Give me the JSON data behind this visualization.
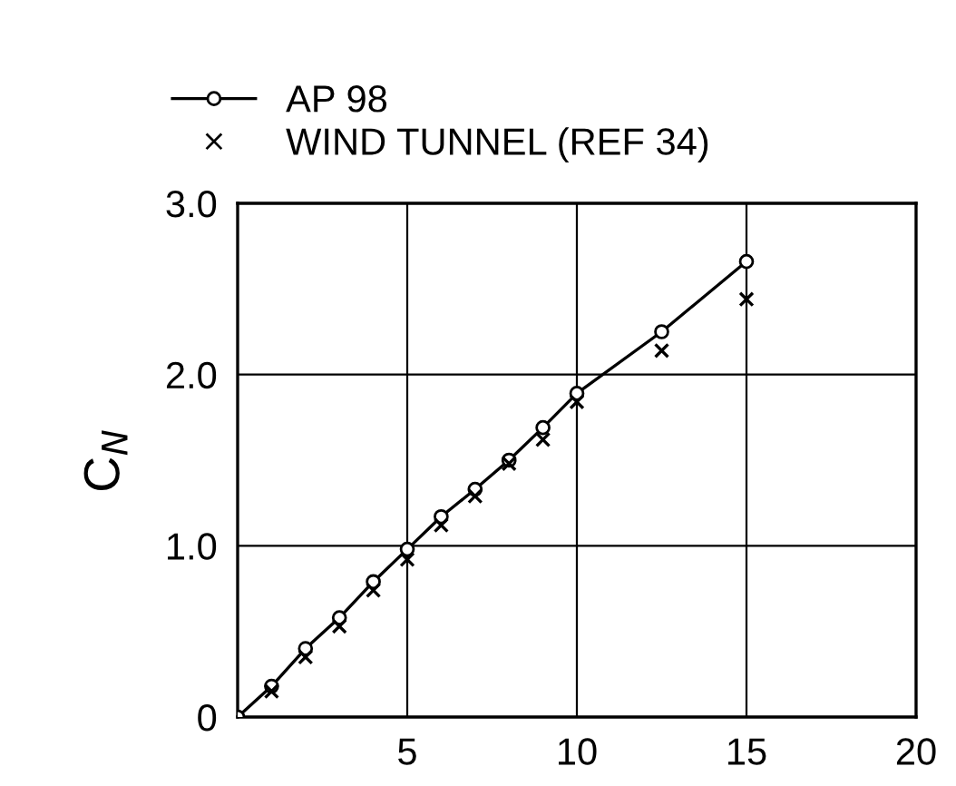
{
  "chart_data": {
    "type": "line",
    "ylabel": "C$_{N}$",
    "series": [
      {
        "name": "AP 98",
        "color": "#000000",
        "marker": "circle",
        "line_style": "solid",
        "x": [
          0,
          1,
          2,
          3,
          4,
          5,
          6,
          7,
          8,
          9,
          10,
          12.5,
          15
        ],
        "values": [
          0,
          0.18,
          0.4,
          0.58,
          0.79,
          0.98,
          1.17,
          1.33,
          1.5,
          1.69,
          1.89,
          2.25,
          2.66
        ]
      },
      {
        "name": "WIND TUNNEL (REF 34)",
        "type": "scatter",
        "color": "#000000",
        "marker": "cross",
        "x": [
          1,
          2,
          3,
          4,
          5,
          6,
          7,
          8,
          9,
          10,
          12.5,
          15
        ],
        "values": [
          0.15,
          0.35,
          0.53,
          0.74,
          0.92,
          1.12,
          1.29,
          1.48,
          1.62,
          1.84,
          2.14,
          2.44
        ]
      }
    ],
    "xlim": [
      0,
      20
    ],
    "xticks": [
      5,
      10,
      15,
      20
    ],
    "ylim": [
      0,
      3.0
    ],
    "yticks": [
      0,
      {
        "value": 1.0,
        "label": "1.0"
      },
      {
        "value": 2.0,
        "label": "2.0"
      },
      {
        "value": 3.0,
        "label": "3.0"
      }
    ],
    "grid": true,
    "legend": "top"
  }
}
